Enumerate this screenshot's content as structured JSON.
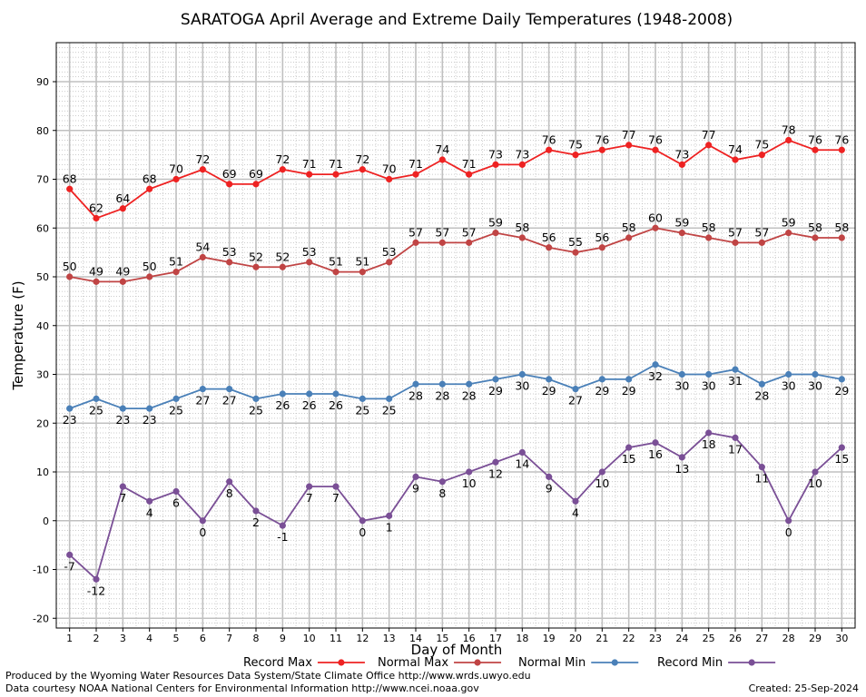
{
  "chart_data": {
    "type": "line",
    "title": "SARATOGA April Average and Extreme Daily Temperatures (1948-2008)",
    "xlabel": "Day of Month",
    "ylabel": "Temperature (F)",
    "x": [
      1,
      2,
      3,
      4,
      5,
      6,
      7,
      8,
      9,
      10,
      11,
      12,
      13,
      14,
      15,
      16,
      17,
      18,
      19,
      20,
      21,
      22,
      23,
      24,
      25,
      26,
      27,
      28,
      29,
      30
    ],
    "xlim": [
      0.5,
      30.5
    ],
    "ylim": [
      -22,
      98
    ],
    "yticks": [
      -20,
      -10,
      0,
      10,
      20,
      30,
      40,
      50,
      60,
      70,
      80,
      90
    ],
    "grid": true,
    "legend_placement": "bottom",
    "series": [
      {
        "name": "Record Max",
        "color": "#ee2222",
        "label_position": "above",
        "values": [
          68,
          62,
          64,
          68,
          70,
          72,
          69,
          69,
          72,
          71,
          71,
          72,
          70,
          71,
          74,
          71,
          73,
          73,
          76,
          75,
          76,
          77,
          76,
          73,
          77,
          74,
          75,
          78,
          76,
          76
        ]
      },
      {
        "name": "Normal Max",
        "color": "#c04444",
        "label_position": "above",
        "values": [
          50,
          49,
          49,
          50,
          51,
          54,
          53,
          52,
          52,
          53,
          51,
          51,
          53,
          57,
          57,
          57,
          59,
          58,
          56,
          55,
          56,
          58,
          60,
          59,
          58,
          57,
          57,
          59,
          58,
          58
        ]
      },
      {
        "name": "Normal Min",
        "color": "#4a80b8",
        "label_position": "below",
        "values": [
          23,
          25,
          23,
          23,
          25,
          27,
          27,
          25,
          26,
          26,
          26,
          25,
          25,
          28,
          28,
          28,
          29,
          30,
          29,
          27,
          29,
          29,
          32,
          30,
          30,
          31,
          28,
          30,
          30,
          29
        ]
      },
      {
        "name": "Record Min",
        "color": "#7a4f96",
        "label_position": "below",
        "values": [
          -7,
          -12,
          7,
          4,
          6,
          0,
          8,
          2,
          -1,
          7,
          7,
          0,
          1,
          9,
          8,
          10,
          12,
          14,
          9,
          4,
          10,
          15,
          16,
          13,
          18,
          17,
          11,
          0,
          10,
          15
        ]
      }
    ]
  },
  "footer": {
    "produced_by": "Produced by the Wyoming Water Resources Data System/State Climate Office http://www.wrds.uwyo.edu",
    "courtesy": "Data courtesy NOAA National Centers for Environmental Information http://www.ncei.noaa.gov",
    "created": "Created:  25-Sep-2024"
  }
}
